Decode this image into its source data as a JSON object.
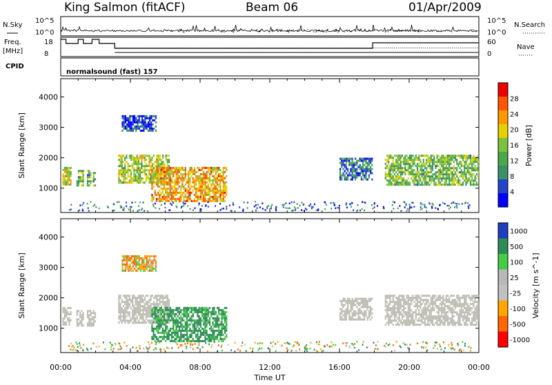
{
  "header": {
    "station": "King Salmon (fitACF)",
    "beam": "Beam 06",
    "date": "01/Apr/2009"
  },
  "summary_labels": {
    "nsky": "N.Sky",
    "freq_line1": "Freq.",
    "freq_line2": "[MHz]",
    "cpid": "CPID",
    "nsearch": "N.Search",
    "nave": "Nave",
    "cpid_value": "normalsound (fast) 157",
    "nsky_ticks": [
      "10^5",
      "10^0"
    ],
    "nsearch_ticks": [
      "10^5",
      "10^0"
    ],
    "freq_ticks": [
      "18",
      "8"
    ],
    "nave_ticks": [
      "60",
      "0"
    ]
  },
  "colors": {
    "power_scale": [
      "#0000ff",
      "#2244cc",
      "#3a8f66",
      "#4aa84a",
      "#7cc23c",
      "#e6d000",
      "#ff9900",
      "#ff5500",
      "#ee0000"
    ],
    "velocity_scale": [
      "#ff0000",
      "#ff6600",
      "#ffa500",
      "#c0c0c0",
      "#b8b8b8",
      "#44cc44",
      "#2e8b57",
      "#1e3fbf"
    ],
    "ground_scatter": "#bdbdb4"
  },
  "chart_data": [
    {
      "type": "heatmap",
      "name_hint": "power panel",
      "ylabel": "Slant Range [km]",
      "xlabel": "Time UT",
      "x_ticks": [
        "00:00",
        "04:00",
        "08:00",
        "12:00",
        "16:00",
        "20:00",
        "00:00"
      ],
      "xlim_hours": [
        0,
        24
      ],
      "y_ticks": [
        1000,
        2000,
        3000,
        4000
      ],
      "ylim": [
        200,
        4600
      ],
      "colorbar": {
        "label": "Power [dB]",
        "ticks": [
          "4",
          "8",
          "12",
          "16",
          "20",
          "24",
          "28"
        ],
        "range": [
          0,
          32
        ]
      },
      "regions": [
        {
          "t0": 0.1,
          "t1": 0.6,
          "r0": 1100,
          "r1": 1700,
          "level": 18
        },
        {
          "t0": 0.9,
          "t1": 1.3,
          "r0": 1100,
          "r1": 1600,
          "level": 14
        },
        {
          "t0": 1.5,
          "t1": 2.0,
          "r0": 1100,
          "r1": 1600,
          "level": 12
        },
        {
          "t0": 3.3,
          "t1": 6.2,
          "r0": 1200,
          "r1": 2100,
          "level": 16
        },
        {
          "t0": 3.5,
          "t1": 5.5,
          "r0": 2900,
          "r1": 3400,
          "level": 4
        },
        {
          "t0": 5.2,
          "t1": 9.5,
          "r0": 600,
          "r1": 1700,
          "level": 22
        },
        {
          "t0": 16.0,
          "t1": 17.9,
          "r0": 1300,
          "r1": 2000,
          "level": 8
        },
        {
          "t0": 18.6,
          "t1": 24.0,
          "r0": 1100,
          "r1": 2100,
          "level": 14
        }
      ]
    },
    {
      "type": "heatmap",
      "name_hint": "velocity panel",
      "ylabel": "Slant Range [km]",
      "xlabel": "Time UT",
      "x_ticks": [
        "00:00",
        "04:00",
        "08:00",
        "12:00",
        "16:00",
        "20:00",
        "00:00"
      ],
      "xlim_hours": [
        0,
        24
      ],
      "y_ticks": [
        1000,
        2000,
        3000,
        4000
      ],
      "ylim": [
        200,
        4600
      ],
      "colorbar": {
        "label": "Velocity [m s^-1]",
        "ticks": [
          "1000",
          "500",
          "100",
          "25",
          "-25",
          "-100",
          "-500",
          "-1000"
        ],
        "range": [
          -1000,
          1000
        ]
      },
      "regions": [
        {
          "t0": 0.1,
          "t1": 0.6,
          "r0": 1100,
          "r1": 1700,
          "level": 0
        },
        {
          "t0": 0.9,
          "t1": 1.3,
          "r0": 1100,
          "r1": 1600,
          "level": 0
        },
        {
          "t0": 1.5,
          "t1": 2.0,
          "r0": 1100,
          "r1": 1600,
          "level": 0
        },
        {
          "t0": 3.3,
          "t1": 6.2,
          "r0": 1200,
          "r1": 2100,
          "level": 0
        },
        {
          "t0": 3.5,
          "t1": 5.5,
          "r0": 2900,
          "r1": 3400,
          "level": -50
        },
        {
          "t0": 5.2,
          "t1": 9.5,
          "r0": 600,
          "r1": 1700,
          "level": 150
        },
        {
          "t0": 16.0,
          "t1": 17.9,
          "r0": 1300,
          "r1": 2000,
          "level": 0
        },
        {
          "t0": 18.6,
          "t1": 24.0,
          "r0": 1100,
          "r1": 2100,
          "level": 0
        }
      ]
    }
  ]
}
